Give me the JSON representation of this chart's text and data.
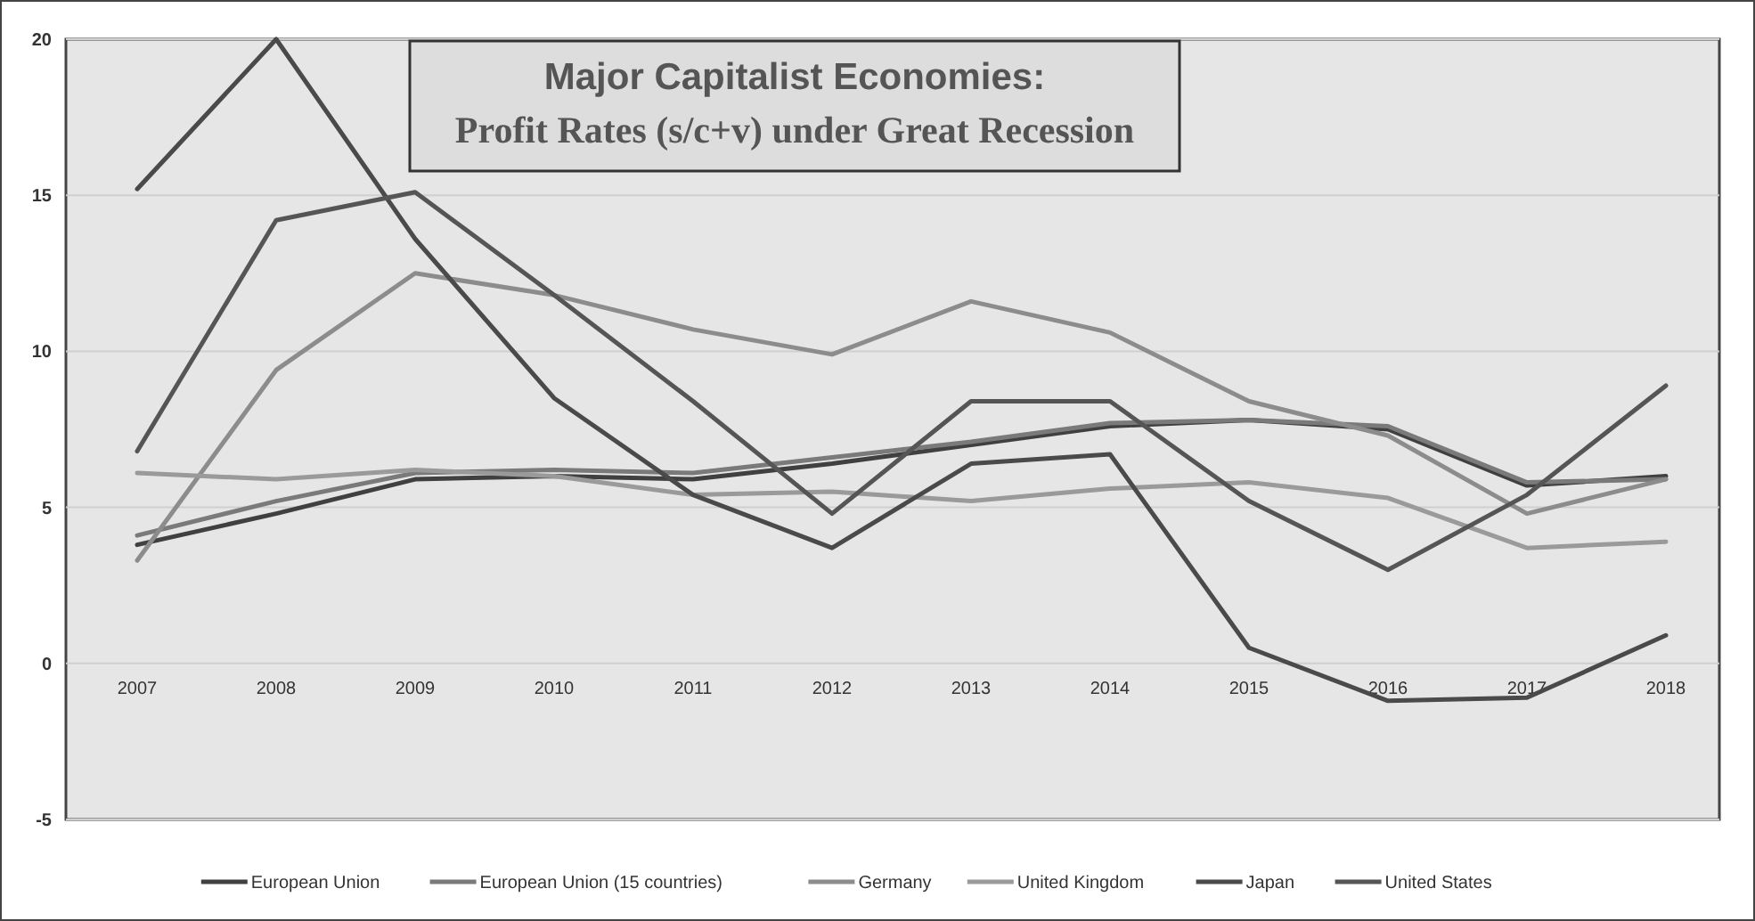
{
  "chart_data": {
    "type": "line",
    "title": "Major Capitalist Economies:\nProfit Rates (s/c+v) under Great Recession",
    "categories": [
      "2007",
      "2008",
      "2009",
      "2010",
      "2011",
      "2012",
      "2013",
      "2014",
      "2015",
      "2016",
      "2017",
      "2018"
    ],
    "series": [
      {
        "name": "European Union",
        "color": "#404040",
        "values": [
          3.8,
          4.8,
          5.9,
          6.0,
          5.9,
          6.4,
          7.0,
          7.6,
          7.8,
          7.5,
          5.7,
          6.0
        ]
      },
      {
        "name": "European Union (15 countries)",
        "color": "#7a7a7a",
        "values": [
          4.1,
          5.2,
          6.1,
          6.2,
          6.1,
          6.6,
          7.1,
          7.7,
          7.8,
          7.6,
          5.8,
          5.9
        ]
      },
      {
        "name": "Germany",
        "color": "#8c8c8c",
        "values": [
          3.3,
          9.4,
          12.5,
          11.8,
          10.7,
          9.9,
          11.6,
          10.6,
          8.4,
          7.3,
          4.8,
          5.9
        ]
      },
      {
        "name": "United Kingdom",
        "color": "#9a9a9a",
        "values": [
          6.1,
          5.9,
          6.2,
          6.0,
          5.4,
          5.5,
          5.2,
          5.6,
          5.8,
          5.3,
          3.7,
          3.9
        ]
      },
      {
        "name": "Japan",
        "color": "#4a4a4a",
        "values": [
          15.2,
          20,
          13.6,
          8.5,
          5.4,
          3.7,
          6.4,
          6.7,
          0.5,
          -1.2,
          -1.1,
          0.9
        ]
      },
      {
        "name": "United States",
        "color": "#555555",
        "values": [
          6.8,
          14.2,
          15.1,
          11.8,
          8.4,
          4.8,
          8.4,
          8.4,
          5.2,
          3.0,
          5.4,
          8.9
        ]
      }
    ],
    "ylim": [
      -5,
      20
    ],
    "yticks": [
      -5,
      0,
      5,
      10,
      15,
      20
    ],
    "grid": "y",
    "legend": "bottom"
  }
}
